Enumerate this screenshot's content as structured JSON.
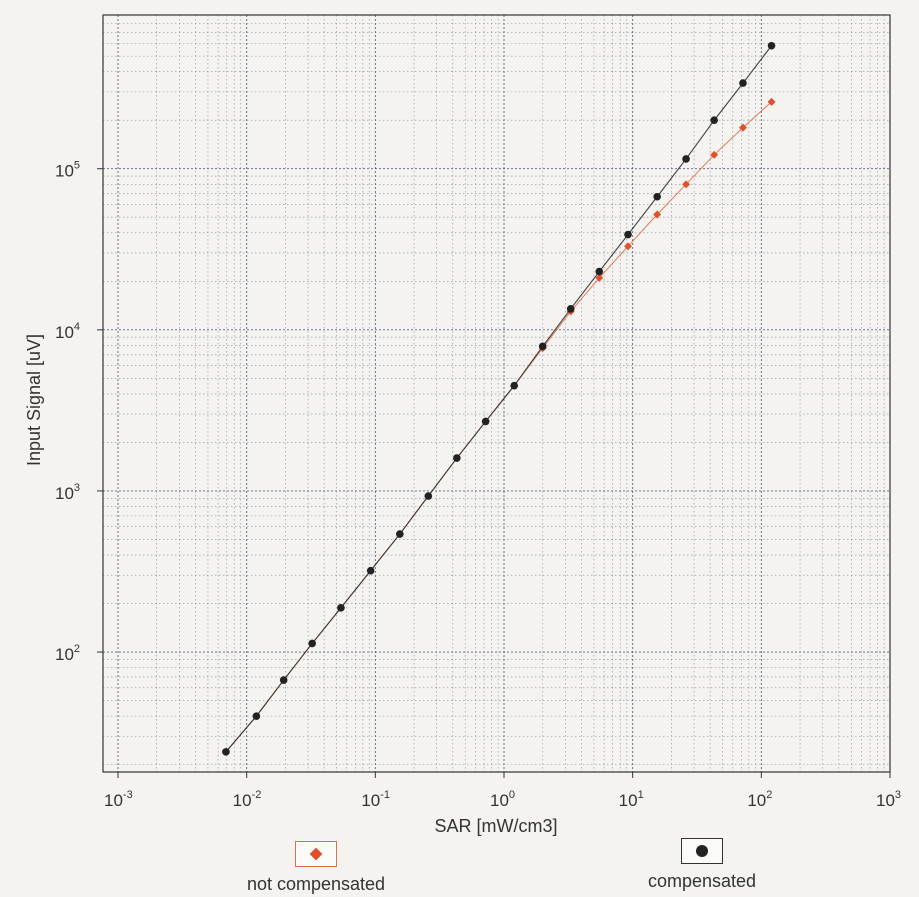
{
  "chart_data": {
    "type": "line",
    "xscale": "log",
    "yscale": "log",
    "xlabel": "SAR [mW/cm3]",
    "ylabel": "Input Signal [uV]",
    "xlim": [
      0.001,
      1000
    ],
    "ylim": [
      18,
      900000
    ],
    "x_ticks": [
      {
        "base": "10",
        "exp": "-3"
      },
      {
        "base": "10",
        "exp": "-2"
      },
      {
        "base": "10",
        "exp": "-1"
      },
      {
        "base": "10",
        "exp": "0"
      },
      {
        "base": "10",
        "exp": "1"
      },
      {
        "base": "10",
        "exp": "2"
      },
      {
        "base": "10",
        "exp": "3"
      }
    ],
    "y_ticks": [
      {
        "base": "10",
        "exp": "2"
      },
      {
        "base": "10",
        "exp": "3"
      },
      {
        "base": "10",
        "exp": "4"
      },
      {
        "base": "10",
        "exp": "5"
      }
    ],
    "grid": true,
    "legend_position": "bottom",
    "series": [
      {
        "name": "not compensated",
        "color": "#e0502a",
        "marker": "diamond",
        "x": [
          0.0069,
          0.0119,
          0.0194,
          0.0323,
          0.054,
          0.092,
          0.155,
          0.258,
          0.43,
          0.72,
          1.2,
          2.0,
          3.3,
          5.5,
          9.2,
          15.5,
          26,
          43,
          72,
          120
        ],
        "y": [
          24,
          40,
          67,
          113,
          188,
          320,
          540,
          930,
          1600,
          2700,
          4500,
          7700,
          13000,
          21000,
          33000,
          52000,
          80000,
          122000,
          180000,
          260000
        ]
      },
      {
        "name": "compensated",
        "color": "#222222",
        "marker": "circle",
        "x": [
          0.0069,
          0.0119,
          0.0194,
          0.0323,
          0.054,
          0.092,
          0.155,
          0.258,
          0.43,
          0.72,
          1.2,
          2.0,
          3.3,
          5.5,
          9.2,
          15.5,
          26,
          43,
          72,
          120
        ],
        "y": [
          24,
          40,
          67,
          113,
          188,
          320,
          540,
          930,
          1600,
          2700,
          4500,
          7900,
          13500,
          23000,
          39000,
          67000,
          115000,
          200000,
          340000,
          580000
        ]
      }
    ]
  }
}
